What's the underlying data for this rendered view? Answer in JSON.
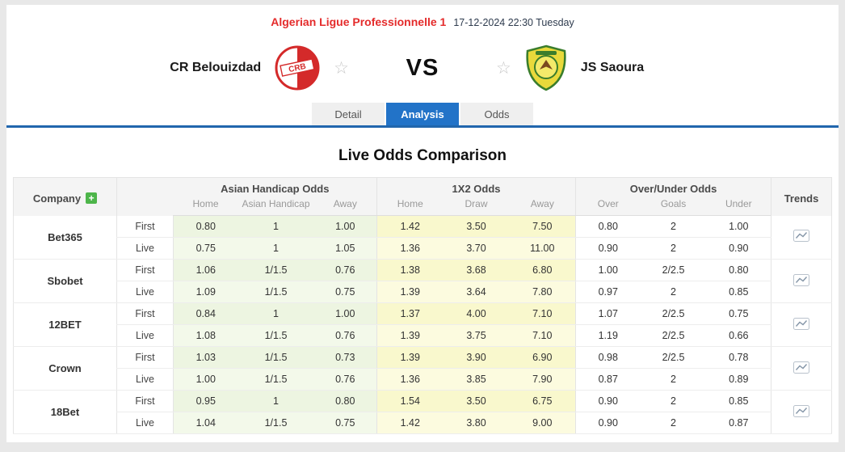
{
  "header": {
    "league": "Algerian Ligue Professionnelle 1",
    "datetime": "17-12-2024 22:30 Tuesday",
    "vs": "VS"
  },
  "teams": {
    "home": {
      "name": "CR Belouizdad",
      "crest_text": "CRB"
    },
    "away": {
      "name": "JS Saoura"
    }
  },
  "tabs": [
    {
      "label": "Detail",
      "active": false
    },
    {
      "label": "Analysis",
      "active": true
    },
    {
      "label": "Odds",
      "active": false
    }
  ],
  "main": {
    "title": "Live Odds Comparison"
  },
  "odds_table": {
    "company_header": "Company",
    "groups": [
      "Asian Handicap Odds",
      "1X2 Odds",
      "Over/Under Odds"
    ],
    "subheaders": [
      "Home",
      "Asian Handicap",
      "Away",
      "Home",
      "Draw",
      "Away",
      "Over",
      "Goals",
      "Under"
    ],
    "trends_header": "Trends",
    "row_types": [
      "First",
      "Live"
    ],
    "companies": [
      {
        "name": "Bet365",
        "first": [
          "0.80",
          "1",
          "1.00",
          "1.42",
          "3.50",
          "7.50",
          "0.80",
          "2",
          "1.00"
        ],
        "live": [
          "0.75",
          "1",
          "1.05",
          "1.36",
          "3.70",
          "11.00",
          "0.90",
          "2",
          "0.90"
        ]
      },
      {
        "name": "Sbobet",
        "first": [
          "1.06",
          "1/1.5",
          "0.76",
          "1.38",
          "3.68",
          "6.80",
          "1.00",
          "2/2.5",
          "0.80"
        ],
        "live": [
          "1.09",
          "1/1.5",
          "0.75",
          "1.39",
          "3.64",
          "7.80",
          "0.97",
          "2",
          "0.85"
        ]
      },
      {
        "name": "12BET",
        "first": [
          "0.84",
          "1",
          "1.00",
          "1.37",
          "4.00",
          "7.10",
          "1.07",
          "2/2.5",
          "0.75"
        ],
        "live": [
          "1.08",
          "1/1.5",
          "0.76",
          "1.39",
          "3.75",
          "7.10",
          "1.19",
          "2/2.5",
          "0.66"
        ]
      },
      {
        "name": "Crown",
        "first": [
          "1.03",
          "1/1.5",
          "0.73",
          "1.39",
          "3.90",
          "6.90",
          "0.98",
          "2/2.5",
          "0.78"
        ],
        "live": [
          "1.00",
          "1/1.5",
          "0.76",
          "1.36",
          "3.85",
          "7.90",
          "0.87",
          "2",
          "0.89"
        ]
      },
      {
        "name": "18Bet",
        "first": [
          "0.95",
          "1",
          "0.80",
          "1.54",
          "3.50",
          "6.75",
          "0.90",
          "2",
          "0.85"
        ],
        "live": [
          "1.04",
          "1/1.5",
          "0.75",
          "1.42",
          "3.80",
          "9.00",
          "0.90",
          "2",
          "0.87"
        ]
      }
    ]
  },
  "icons": {
    "favorite_star": "☆",
    "add_company": "+",
    "trend": "line-chart-icon"
  },
  "colors": {
    "league_red": "#e42b2b",
    "active_tab_blue": "#2273c8",
    "divider_blue": "#2166ad",
    "handicap_green_bg": "#edf5e1",
    "x12_yellow_bg": "#f9f8cd",
    "header_gray_bg": "#f4f4f4",
    "add_green": "#4db54a"
  }
}
